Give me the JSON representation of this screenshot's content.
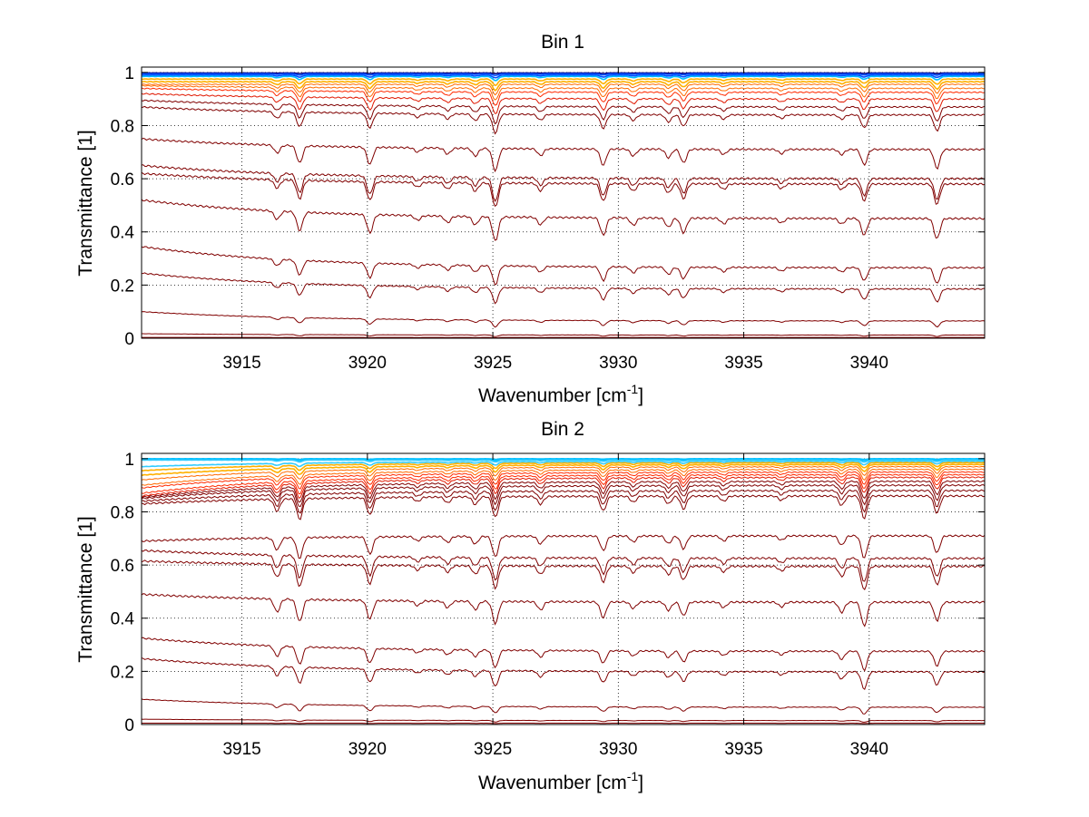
{
  "chart_data": [
    {
      "type": "line",
      "title": "Bin 1",
      "xlabel": "Wavenumber [cm",
      "xlabel_sup": "-1",
      "xlabel_end": "]",
      "ylabel": "Transmittance [1]",
      "xlim": [
        3911,
        3944.6
      ],
      "ylim": [
        0,
        1.02
      ],
      "xticks": [
        3915,
        3920,
        3925,
        3930,
        3935,
        3940
      ],
      "xtick_labels": [
        "3915",
        "3920",
        "3925",
        "3930",
        "3935",
        "3940"
      ],
      "yticks": [
        0,
        0.2,
        0.4,
        0.6,
        0.8,
        1
      ],
      "ytick_labels": [
        "0",
        "0.2",
        "0.4",
        "0.6",
        "0.8",
        "1"
      ],
      "grid": true,
      "line_colors": [
        "#00007f",
        "#0050ff",
        "#00bfff",
        "#ffb000",
        "#ff6a00",
        "#ff2a00",
        "#e01800",
        "#c00000",
        "#a00000",
        "#800000"
      ],
      "absorption_lines": [
        {
          "x": 3916.4,
          "strength": 0.45
        },
        {
          "x": 3917.3,
          "strength": 1.0
        },
        {
          "x": 3920.1,
          "strength": 1.0
        },
        {
          "x": 3922.0,
          "strength": 0.25
        },
        {
          "x": 3923.2,
          "strength": 0.35
        },
        {
          "x": 3924.3,
          "strength": 0.45
        },
        {
          "x": 3925.1,
          "strength": 1.3
        },
        {
          "x": 3926.9,
          "strength": 0.4
        },
        {
          "x": 3929.4,
          "strength": 0.95
        },
        {
          "x": 3930.6,
          "strength": 0.4
        },
        {
          "x": 3932.0,
          "strength": 0.5
        },
        {
          "x": 3932.6,
          "strength": 0.8
        },
        {
          "x": 3934.2,
          "strength": 0.3
        },
        {
          "x": 3936.5,
          "strength": 0.25
        },
        {
          "x": 3938.9,
          "strength": 0.3
        },
        {
          "x": 3939.8,
          "strength": 0.9
        },
        {
          "x": 3942.7,
          "strength": 1.1
        }
      ],
      "series_baselines": [
        0.998,
        0.995,
        0.99,
        0.985,
        0.975,
        0.965,
        0.955,
        0.94,
        0.925,
        0.9,
        0.87,
        0.84,
        0.71,
        0.6,
        0.58,
        0.45,
        0.265,
        0.185,
        0.065,
        0.012,
        0.003
      ],
      "series_start_offsets": [
        0,
        0,
        0,
        0,
        0,
        0,
        0,
        0.01,
        0.015,
        0.02,
        0.025,
        0.03,
        0.04,
        0.05,
        0.04,
        0.07,
        0.08,
        0.06,
        0.035,
        0.005,
        0
      ],
      "series_depths": [
        0.002,
        0.005,
        0.008,
        0.012,
        0.018,
        0.025,
        0.03,
        0.035,
        0.04,
        0.045,
        0.05,
        0.055,
        0.065,
        0.07,
        0.07,
        0.07,
        0.055,
        0.045,
        0.02,
        0.005,
        0.001
      ]
    },
    {
      "type": "line",
      "title": "Bin 2",
      "xlabel": "Wavenumber [cm",
      "xlabel_sup": "-1",
      "xlabel_end": "]",
      "ylabel": "Transmittance [1]",
      "xlim": [
        3911,
        3944.6
      ],
      "ylim": [
        0,
        1.02
      ],
      "xticks": [
        3915,
        3920,
        3925,
        3930,
        3935,
        3940
      ],
      "xtick_labels": [
        "3915",
        "3920",
        "3925",
        "3930",
        "3935",
        "3940"
      ],
      "yticks": [
        0,
        0.2,
        0.4,
        0.6,
        0.8,
        1
      ],
      "ytick_labels": [
        "0",
        "0.2",
        "0.4",
        "0.6",
        "0.8",
        "1"
      ],
      "grid": true,
      "line_colors": [
        "#00bfff",
        "#33ccff",
        "#ffb000",
        "#ff6a00",
        "#ff2a00",
        "#e01800",
        "#c00000",
        "#a00000",
        "#800000"
      ],
      "absorption_lines": [
        {
          "x": 3916.4,
          "strength": 0.7
        },
        {
          "x": 3917.3,
          "strength": 1.2
        },
        {
          "x": 3920.1,
          "strength": 1.0
        },
        {
          "x": 3922.0,
          "strength": 0.25
        },
        {
          "x": 3923.2,
          "strength": 0.35
        },
        {
          "x": 3924.3,
          "strength": 0.45
        },
        {
          "x": 3925.1,
          "strength": 1.2
        },
        {
          "x": 3926.9,
          "strength": 0.45
        },
        {
          "x": 3929.4,
          "strength": 0.85
        },
        {
          "x": 3930.6,
          "strength": 0.35
        },
        {
          "x": 3932.0,
          "strength": 0.45
        },
        {
          "x": 3932.6,
          "strength": 0.75
        },
        {
          "x": 3934.2,
          "strength": 0.3
        },
        {
          "x": 3936.5,
          "strength": 0.25
        },
        {
          "x": 3938.9,
          "strength": 0.55
        },
        {
          "x": 3939.8,
          "strength": 1.3
        },
        {
          "x": 3942.7,
          "strength": 1.0
        }
      ],
      "series_baselines": [
        1.0,
        0.998,
        0.995,
        0.99,
        0.985,
        0.978,
        0.97,
        0.96,
        0.95,
        0.94,
        0.93,
        0.915,
        0.9,
        0.88,
        0.86,
        0.71,
        0.625,
        0.595,
        0.46,
        0.275,
        0.198,
        0.065,
        0.015,
        0.005
      ],
      "series_start_offsets": [
        0,
        0,
        0,
        -0.02,
        -0.03,
        -0.04,
        -0.05,
        -0.06,
        -0.06,
        -0.07,
        -0.07,
        -0.06,
        -0.05,
        -0.04,
        -0.03,
        -0.02,
        0.03,
        0.02,
        0.03,
        0.05,
        0.05,
        0.03,
        0.005,
        0
      ],
      "series_depths": [
        0.002,
        0.004,
        0.006,
        0.01,
        0.015,
        0.02,
        0.025,
        0.03,
        0.035,
        0.04,
        0.045,
        0.05,
        0.055,
        0.06,
        0.065,
        0.065,
        0.07,
        0.07,
        0.07,
        0.055,
        0.05,
        0.02,
        0.005,
        0.001
      ]
    }
  ]
}
